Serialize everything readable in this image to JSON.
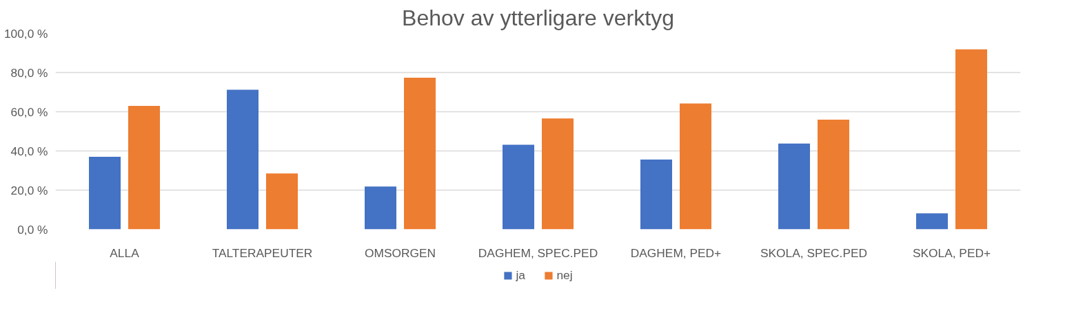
{
  "chart_data": {
    "type": "bar",
    "title": "Behov av ytterligare verktyg",
    "categories": [
      "ALLA",
      "TALTERAPEUTER",
      "OMSORGEN",
      "DAGHEM, SPEC.PED",
      "DAGHEM, PED+",
      "SKOLA, SPEC.PED",
      "SKOLA, PED+"
    ],
    "series": [
      {
        "name": "ja",
        "color": "#4472c4",
        "values": [
          37.0,
          71.2,
          21.8,
          43.2,
          35.6,
          43.8,
          8.2
        ]
      },
      {
        "name": "nej",
        "color": "#ed7d31",
        "values": [
          63.0,
          28.5,
          77.4,
          56.6,
          64.2,
          56.0,
          91.8
        ]
      }
    ],
    "ylim": [
      0,
      100
    ],
    "yticks": [
      {
        "value": 0,
        "label": "0,0 %"
      },
      {
        "value": 20,
        "label": "20,0 %"
      },
      {
        "value": 40,
        "label": "40,0 %"
      },
      {
        "value": 60,
        "label": "60,0 %"
      },
      {
        "value": 80,
        "label": "80,0 %"
      },
      {
        "value": 100,
        "label": "100,0 %"
      }
    ],
    "grid": "y",
    "legend": "bottom"
  }
}
